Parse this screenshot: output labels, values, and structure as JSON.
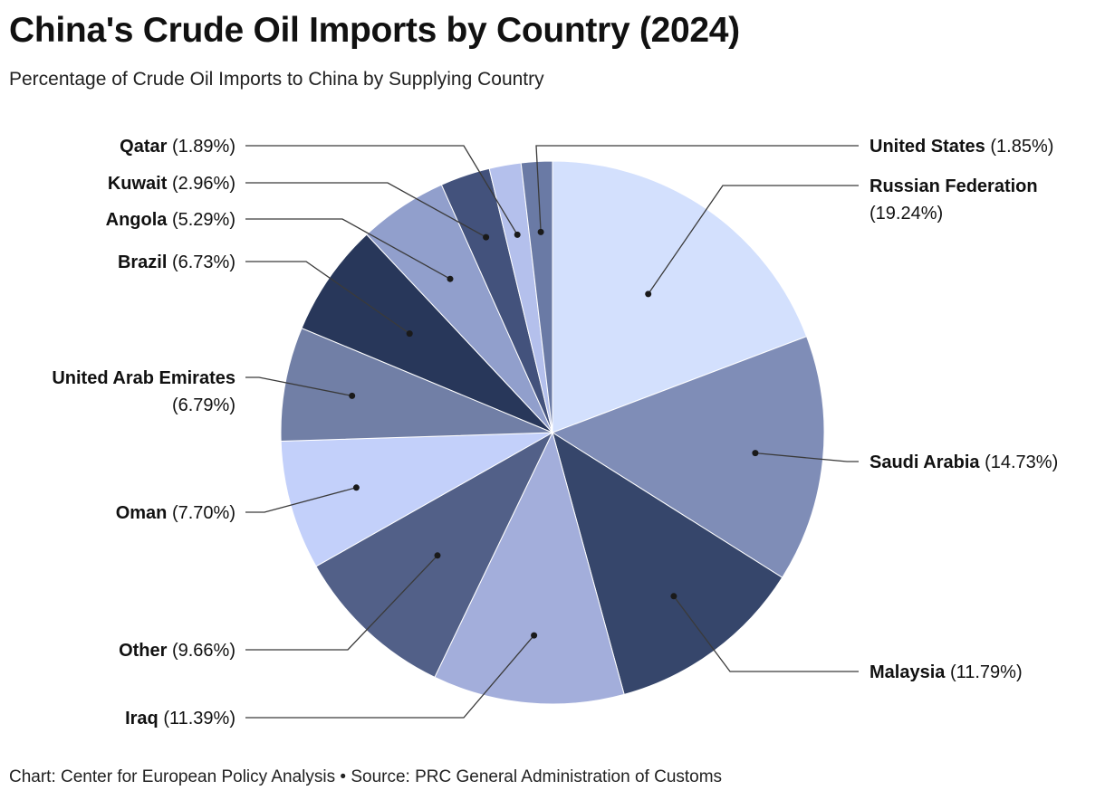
{
  "chart_data": {
    "type": "pie",
    "title": "China's Crude Oil Imports by Country (2024)",
    "subtitle": "Percentage of Crude Oil Imports to China by Supplying Country",
    "unit": "%",
    "slices": [
      {
        "name": "Russian Federation",
        "value": 19.24,
        "display": "(19.24%)",
        "color": "#d3e0fd"
      },
      {
        "name": "Saudi Arabia",
        "value": 14.73,
        "display": "(14.73%)",
        "color": "#7f8db7"
      },
      {
        "name": "Malaysia",
        "value": 11.79,
        "display": "(11.79%)",
        "color": "#36466b"
      },
      {
        "name": "Iraq",
        "value": 11.39,
        "display": "(11.39%)",
        "color": "#a3aedb"
      },
      {
        "name": "Other",
        "value": 9.66,
        "display": "(9.66%)",
        "color": "#526088"
      },
      {
        "name": "Oman",
        "value": 7.7,
        "display": "(7.70%)",
        "color": "#c3d0fa"
      },
      {
        "name": "United Arab Emirates",
        "value": 6.79,
        "display": "(6.79%)",
        "color": "#717fa6"
      },
      {
        "name": "Brazil",
        "value": 6.73,
        "display": "(6.73%)",
        "color": "#28375a"
      },
      {
        "name": "Angola",
        "value": 5.29,
        "display": "(5.29%)",
        "color": "#919fcc"
      },
      {
        "name": "Kuwait",
        "value": 2.96,
        "display": "(2.96%)",
        "color": "#43527c"
      },
      {
        "name": "Qatar",
        "value": 1.89,
        "display": "(1.89%)",
        "color": "#b4c0ec"
      },
      {
        "name": "United States",
        "value": 1.85,
        "display": "(1.85%)",
        "color": "#6a7aa5"
      }
    ]
  },
  "footer": "Chart: Center for European Policy Analysis • Source: PRC General Administration of Customs"
}
